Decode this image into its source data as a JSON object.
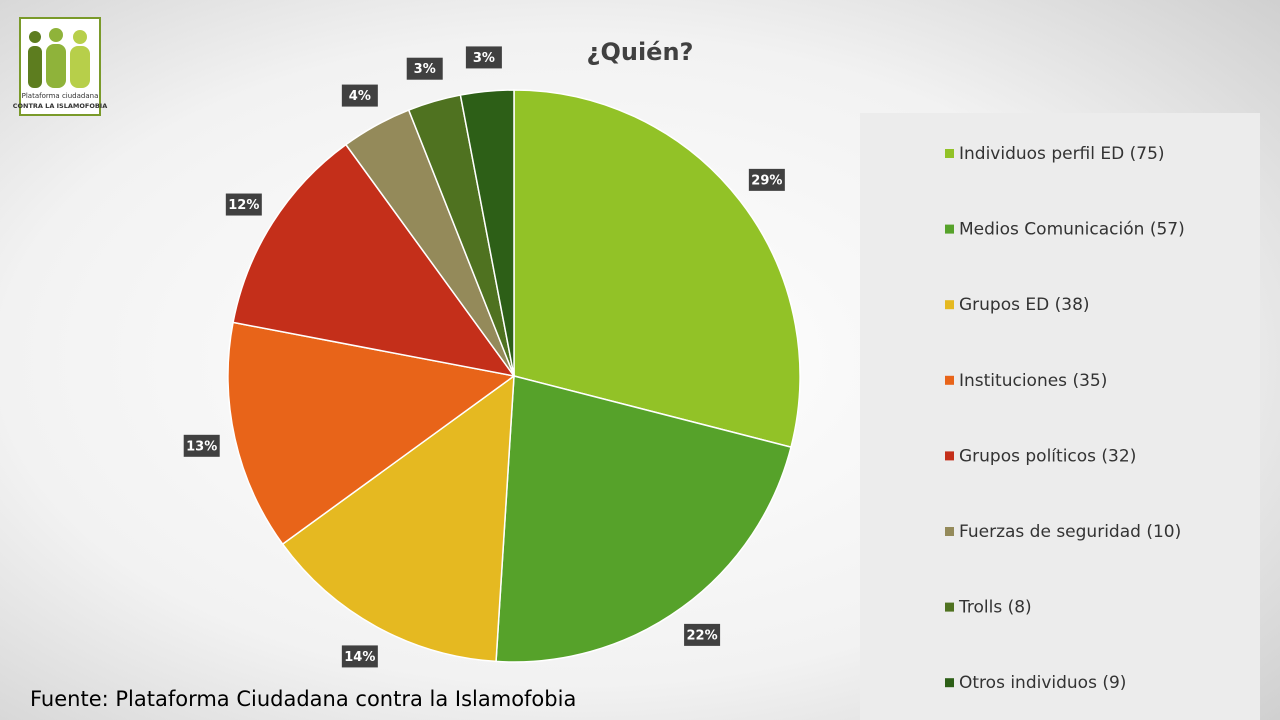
{
  "chart_data": {
    "type": "pie",
    "title": "¿Quién?",
    "categories": [
      "Individuos perfil ED (75)",
      "Medios Comunicación (57)",
      "Grupos ED (38)",
      "Instituciones (35)",
      "Grupos políticos (32)",
      "Fuerzas de seguridad (10)",
      "Trolls (8)",
      "Otros individuos (9)"
    ],
    "values": [
      29,
      22,
      14,
      13,
      12,
      4,
      3,
      3
    ],
    "value_labels": [
      "29%",
      "22%",
      "14%",
      "13%",
      "12%",
      "4%",
      "3%",
      "3%"
    ],
    "colors": [
      "#92c227",
      "#56a22a",
      "#e5b921",
      "#e86419",
      "#c42f1a",
      "#948a5a",
      "#4f7220",
      "#2d5f17"
    ],
    "legend": "right"
  },
  "source": "Fuente: Plataforma Ciudadana contra la Islamofobia",
  "logo": {
    "line1": "Plataforma ciudadana",
    "line2": "CONTRA LA ISLAMOFOBIA"
  }
}
